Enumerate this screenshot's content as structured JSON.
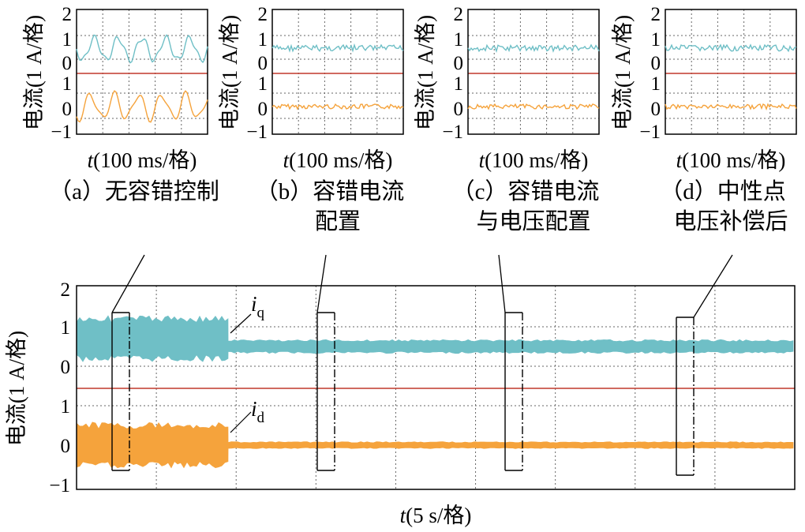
{
  "colors": {
    "iq": "#6fbfc6",
    "id": "#f5a33c",
    "divider": "#c0392b"
  },
  "small_panels": [
    {
      "id": "a",
      "caption": [
        "（a）无容错控制"
      ],
      "ylabel": "电流(1 A/格)",
      "xlabel_italic": "t",
      "xlabel_rest": "(100 ms/格)",
      "yticks_upper": [
        "2",
        "1",
        "0"
      ],
      "yticks_lower": [
        "1",
        "0",
        "−1"
      ]
    },
    {
      "id": "b",
      "caption": [
        "（b）容错电流",
        "配置"
      ],
      "ylabel": "电流(1 A/格)",
      "xlabel_italic": "t",
      "xlabel_rest": "(100 ms/格)",
      "yticks_upper": [
        "2",
        "1",
        "0"
      ],
      "yticks_lower": [
        "1",
        "0",
        "−1"
      ]
    },
    {
      "id": "c",
      "caption": [
        "（c）容错电流",
        "与电压配置"
      ],
      "ylabel": "电流(1 A/格)",
      "xlabel_italic": "t",
      "xlabel_rest": "(100 ms/格)",
      "yticks_upper": [
        "2",
        "1",
        "0"
      ],
      "yticks_lower": [
        "1",
        "0",
        "−1"
      ]
    },
    {
      "id": "d",
      "caption": [
        "（d）中性点",
        "电压补偿后"
      ],
      "ylabel": "电流(1 A/格)",
      "xlabel_italic": "t",
      "xlabel_rest": "(100 ms/格)",
      "yticks_upper": [
        "2",
        "1",
        "0"
      ],
      "yticks_lower": [
        "1",
        "0",
        "−1"
      ]
    }
  ],
  "main_plot": {
    "ylabel": "电流(1 A/格)",
    "xlabel_italic": "t",
    "xlabel_rest": "(5 s/格)",
    "yticks_upper": [
      "2",
      "1",
      "0"
    ],
    "yticks_lower": [
      "1",
      "0",
      "−1"
    ],
    "label_iq_main": "i",
    "label_iq_sub": "q",
    "label_id_main": "i",
    "label_id_sub": "d"
  },
  "chart_data": {
    "type": "line",
    "x_divisions": 9,
    "x_unit": "5 s/div",
    "y_unit": "1 A/div",
    "upper_ylim": [
      0,
      2
    ],
    "lower_ylim": [
      -1,
      1
    ],
    "grid": true,
    "series": [
      {
        "name": "iq",
        "segments": [
          {
            "x_range": [
              0,
              1.9
            ],
            "mean": 0.7,
            "ripple_peak_to_peak": 1.0
          },
          {
            "x_range": [
              1.9,
              9
            ],
            "mean": 0.5,
            "ripple_peak_to_peak": 0.3
          }
        ]
      },
      {
        "name": "id",
        "segments": [
          {
            "x_range": [
              0,
              1.9
            ],
            "mean": 0.0,
            "ripple_peak_to_peak": 1.0
          },
          {
            "x_range": [
              1.9,
              9
            ],
            "mean": 0.0,
            "ripple_peak_to_peak": 0.15
          }
        ]
      }
    ]
  }
}
